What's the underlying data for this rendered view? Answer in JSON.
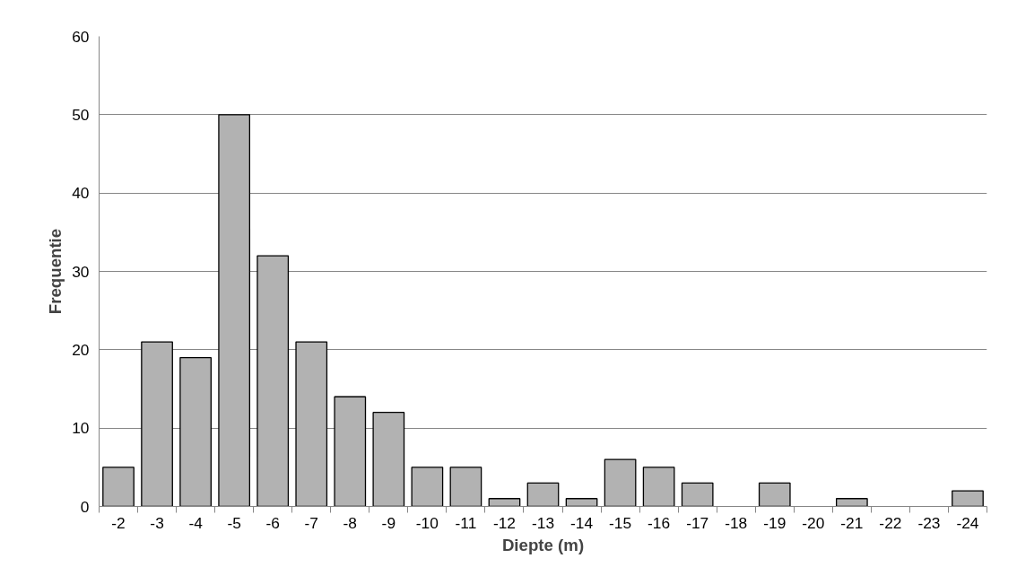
{
  "chart_data": {
    "type": "bar",
    "xlabel": "Diepte (m)",
    "ylabel": "Frequentie",
    "categories": [
      "-2",
      "-3",
      "-4",
      "-5",
      "-6",
      "-7",
      "-8",
      "-9",
      "-10",
      "-11",
      "-12",
      "-13",
      "-14",
      "-15",
      "-16",
      "-17",
      "-18",
      "-19",
      "-20",
      "-21",
      "-22",
      "-23",
      "-24"
    ],
    "values": [
      5,
      21,
      19,
      50,
      32,
      21,
      14,
      12,
      5,
      5,
      1,
      3,
      1,
      6,
      5,
      3,
      0,
      3,
      0,
      1,
      0,
      0,
      2
    ],
    "color": "#b2b2b2",
    "ylim": [
      0,
      60
    ],
    "yticks": [
      0,
      10,
      20,
      30,
      40,
      50,
      60
    ],
    "grid": "y"
  }
}
